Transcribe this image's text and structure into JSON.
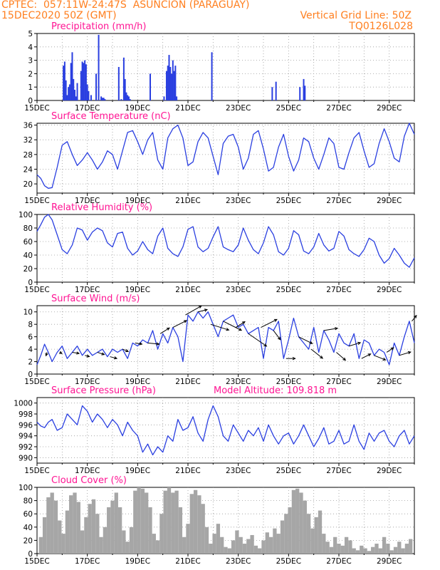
{
  "header": {
    "left1": "CPTEC:  057:11W-24:47S  ASUNCION (PARAGUAY)",
    "left2": "15DEC2020 50Z (GMT)",
    "right1": "Vertical Grid Line: 50Z",
    "right2": "TQ0126L028"
  },
  "colors": {
    "accent": "#ff7f1f",
    "title": "#ff1493",
    "line": "#2a3fe0",
    "bar": "#2a3fe0",
    "cloud": "#a6a6a6"
  },
  "x_tick_labels": [
    "15DEC",
    "17DEC",
    "19DEC",
    "21DEC",
    "23DEC",
    "25DEC",
    "27DEC",
    "29DEC"
  ],
  "chart_data": [
    {
      "type": "bar",
      "title": "Precipitation (mm/h)",
      "ylim": [
        0,
        5
      ],
      "yticks": [
        "0",
        "1",
        "2",
        "3",
        "4",
        "5"
      ],
      "x_range_days": [
        0,
        15
      ],
      "x": [
        1.05,
        1.1,
        1.15,
        1.2,
        1.25,
        1.3,
        1.35,
        1.4,
        1.45,
        1.5,
        1.55,
        1.6,
        1.75,
        1.8,
        1.85,
        1.9,
        1.95,
        2.0,
        2.05,
        2.15,
        2.35,
        2.45,
        2.55,
        2.6,
        2.65,
        2.7,
        3.25,
        3.35,
        3.45,
        3.5,
        3.55,
        3.6,
        3.65,
        3.7,
        4.5,
        5.05,
        5.15,
        5.2,
        5.25,
        5.3,
        5.35,
        5.4,
        5.45,
        5.5,
        5.55,
        6.95,
        9.35,
        9.5,
        10.45,
        10.6,
        10.65
      ],
      "values": [
        2.6,
        2.9,
        1.5,
        0.4,
        1.0,
        1.2,
        2.8,
        3.6,
        1.6,
        0.8,
        0.3,
        1.3,
        2.2,
        2.9,
        2.8,
        3.0,
        2.7,
        1.2,
        0.7,
        0.4,
        2.0,
        4.9,
        0.3,
        0.2,
        0.2,
        0.1,
        2.5,
        0.1,
        3.2,
        1.6,
        0.6,
        0.4,
        0.3,
        0.1,
        2.0,
        0.3,
        2.2,
        2.6,
        3.4,
        2.5,
        2.0,
        3.0,
        2.2,
        2.6,
        0.3,
        3.6,
        1.0,
        1.4,
        1.0,
        1.6,
        1.1
      ]
    },
    {
      "type": "line",
      "title": "Surface Temperature (nC)",
      "ylim": [
        17.5,
        36.5
      ],
      "yticks": [
        "20",
        "24",
        "28",
        "32",
        "36"
      ],
      "x_range_days": [
        0,
        15
      ],
      "x": [
        0,
        0.15,
        0.3,
        0.45,
        0.6,
        0.8,
        1.0,
        1.2,
        1.4,
        1.6,
        1.8,
        2.0,
        2.2,
        2.4,
        2.6,
        2.8,
        3.0,
        3.2,
        3.4,
        3.6,
        3.8,
        4.0,
        4.2,
        4.4,
        4.6,
        4.8,
        5.0,
        5.2,
        5.4,
        5.6,
        5.8,
        6.0,
        6.2,
        6.4,
        6.6,
        6.8,
        7.0,
        7.2,
        7.4,
        7.6,
        7.8,
        8.0,
        8.2,
        8.4,
        8.6,
        8.8,
        9.0,
        9.2,
        9.4,
        9.6,
        9.8,
        10.0,
        10.2,
        10.4,
        10.6,
        10.8,
        11.0,
        11.2,
        11.4,
        11.6,
        11.8,
        12.0,
        12.2,
        12.4,
        12.6,
        12.8,
        13.0,
        13.2,
        13.4,
        13.6,
        13.8,
        14.0,
        14.2,
        14.4,
        14.6,
        14.8,
        15.0
      ],
      "values": [
        22.5,
        21.5,
        19.5,
        18.8,
        19.0,
        24.5,
        30.5,
        31.5,
        28.0,
        25.0,
        26.5,
        28.5,
        26.5,
        24.0,
        26.0,
        29.0,
        28.0,
        24.0,
        29.0,
        34.0,
        34.5,
        31.5,
        28.0,
        32.0,
        34.0,
        26.5,
        24.0,
        32.5,
        35.0,
        36.0,
        32.5,
        25.0,
        26.0,
        31.5,
        34.0,
        32.5,
        27.5,
        22.5,
        31.0,
        33.0,
        33.5,
        30.0,
        24.0,
        27.0,
        33.5,
        34.5,
        29.5,
        23.5,
        24.5,
        30.0,
        33.5,
        27.5,
        23.5,
        26.5,
        32.5,
        31.5,
        27.0,
        24.0,
        28.0,
        32.5,
        31.0,
        24.5,
        24.0,
        28.5,
        32.5,
        34.0,
        29.0,
        24.5,
        25.5,
        31.0,
        35.0,
        31.5,
        27.0,
        26.0,
        33.0,
        36.5,
        33.5
      ]
    },
    {
      "type": "line",
      "title": "Relative Humidity (%)",
      "ylim": [
        0,
        100
      ],
      "yticks": [
        "0",
        "20",
        "40",
        "60",
        "80",
        "100"
      ],
      "x_range_days": [
        0,
        15
      ],
      "x": [
        0,
        0.15,
        0.3,
        0.45,
        0.6,
        0.8,
        1.0,
        1.2,
        1.4,
        1.6,
        1.8,
        2.0,
        2.2,
        2.4,
        2.6,
        2.8,
        3.0,
        3.2,
        3.4,
        3.6,
        3.8,
        4.0,
        4.2,
        4.4,
        4.6,
        4.8,
        5.0,
        5.2,
        5.4,
        5.6,
        5.8,
        6.0,
        6.2,
        6.4,
        6.6,
        6.8,
        7.0,
        7.2,
        7.4,
        7.6,
        7.8,
        8.0,
        8.2,
        8.4,
        8.6,
        8.8,
        9.0,
        9.2,
        9.4,
        9.6,
        9.8,
        10.0,
        10.2,
        10.4,
        10.6,
        10.8,
        11.0,
        11.2,
        11.4,
        11.6,
        11.8,
        12.0,
        12.2,
        12.4,
        12.6,
        12.8,
        13.0,
        13.2,
        13.4,
        13.6,
        13.8,
        14.0,
        14.2,
        14.4,
        14.6,
        14.8,
        15.0
      ],
      "values": [
        75.0,
        85.0,
        96.0,
        100.0,
        92.0,
        70.0,
        48.0,
        42.0,
        55.0,
        80.0,
        77.0,
        62.0,
        74.0,
        80.0,
        76.0,
        58.0,
        52.0,
        72.0,
        74.0,
        50.0,
        40.0,
        46.0,
        60.0,
        48.0,
        42.0,
        68.0,
        80.0,
        50.0,
        42.0,
        38.0,
        52.0,
        78.0,
        82.0,
        52.0,
        45.0,
        50.0,
        67.0,
        82.0,
        52.0,
        48.0,
        45.0,
        55.0,
        80.0,
        62.0,
        48.0,
        42.0,
        58.0,
        82.0,
        70.0,
        45.0,
        40.0,
        50.0,
        76.0,
        70.0,
        46.0,
        42.0,
        52.0,
        72.0,
        55.0,
        46.0,
        50.0,
        75.0,
        68.0,
        48.0,
        42.0,
        38.0,
        48.0,
        65.0,
        60.0,
        40.0,
        28.0,
        35.0,
        50.0,
        40.0,
        28.0,
        22.0,
        36.0
      ]
    },
    {
      "type": "line",
      "title": "Surface Wind (m/s)",
      "ylim": [
        0,
        11
      ],
      "yticks": [
        "0",
        "2",
        "4",
        "6",
        "8",
        "10"
      ],
      "x_range_days": [
        0,
        15
      ],
      "x": [
        0,
        0.15,
        0.3,
        0.45,
        0.6,
        0.8,
        1.0,
        1.2,
        1.4,
        1.6,
        1.8,
        2.0,
        2.2,
        2.4,
        2.6,
        2.8,
        3.0,
        3.2,
        3.4,
        3.6,
        3.8,
        4.0,
        4.2,
        4.4,
        4.6,
        4.8,
        5.0,
        5.2,
        5.4,
        5.6,
        5.8,
        6.0,
        6.2,
        6.4,
        6.6,
        6.8,
        7.0,
        7.2,
        7.4,
        7.6,
        7.8,
        8.0,
        8.2,
        8.4,
        8.6,
        8.8,
        9.0,
        9.2,
        9.4,
        9.6,
        9.8,
        10.0,
        10.2,
        10.4,
        10.6,
        10.8,
        11.0,
        11.2,
        11.4,
        11.6,
        11.8,
        12.0,
        12.2,
        12.4,
        12.6,
        12.8,
        13.0,
        13.2,
        13.4,
        13.6,
        13.8,
        14.0,
        14.2,
        14.4,
        14.6,
        14.8,
        15.0
      ],
      "values": [
        1.5,
        3.0,
        4.8,
        3.5,
        2.0,
        3.5,
        4.5,
        2.5,
        3.5,
        4.5,
        3.0,
        4.0,
        3.0,
        3.5,
        4.0,
        2.8,
        4.0,
        3.5,
        4.0,
        2.5,
        5.0,
        4.5,
        5.5,
        5.0,
        7.0,
        4.0,
        6.5,
        5.0,
        7.5,
        6.0,
        2.0,
        9.5,
        8.5,
        10.0,
        9.0,
        10.0,
        8.0,
        6.0,
        8.5,
        9.0,
        9.5,
        7.5,
        8.0,
        6.5,
        7.0,
        7.5,
        2.5,
        7.5,
        7.0,
        8.5,
        2.5,
        5.5,
        9.0,
        6.0,
        5.0,
        4.0,
        7.5,
        3.5,
        7.0,
        5.5,
        3.5,
        6.5,
        5.0,
        4.5,
        6.5,
        2.5,
        5.5,
        5.0,
        3.0,
        4.0,
        3.5,
        1.5,
        5.0,
        3.0,
        6.0,
        8.5,
        5.0
      ],
      "vector_x": [
        0.4,
        0.9,
        1.4,
        1.9,
        2.4,
        2.9,
        3.4,
        3.9,
        4.4,
        4.9,
        5.4,
        5.9,
        6.4,
        6.9,
        7.4,
        7.9,
        8.4,
        8.9,
        9.4,
        9.9,
        10.4,
        10.9,
        11.4,
        11.9,
        12.4,
        12.9,
        13.4,
        13.9,
        14.4,
        14.9
      ],
      "vector_u": [
        -0.5,
        1.0,
        3.0,
        2.0,
        3.0,
        3.0,
        2.5,
        3.0,
        5.0,
        4.0,
        6.0,
        7.0,
        4.0,
        8.0,
        8.0,
        4.0,
        8.0,
        7.0,
        3.0,
        4.0,
        6.0,
        5.0,
        6.0,
        4.0,
        5.0,
        4.0,
        5.0,
        3.0,
        5.0,
        2.0
      ],
      "vector_v": [
        -1.5,
        -0.5,
        -0.5,
        -0.5,
        -1.0,
        -0.8,
        -1.0,
        -0.5,
        -0.5,
        2.5,
        3.0,
        4.0,
        1.0,
        -2.5,
        -4.0,
        2.5,
        -5.5,
        3.5,
        -4.0,
        0.0,
        -3.0,
        -4.0,
        1.0,
        -3.5,
        1.5,
        2.0,
        -2.0,
        2.0,
        1.5,
        2.5
      ]
    },
    {
      "type": "line",
      "title": "Surface Pressure (hPa)",
      "annotation": "Model Altitude: 109.818 m",
      "ylim": [
        989,
        1001
      ],
      "yticks": [
        "990",
        "992",
        "994",
        "996",
        "998",
        "1000"
      ],
      "x_range_days": [
        0,
        15
      ],
      "x": [
        0,
        0.15,
        0.3,
        0.45,
        0.6,
        0.8,
        1.0,
        1.2,
        1.4,
        1.6,
        1.8,
        2.0,
        2.2,
        2.4,
        2.6,
        2.8,
        3.0,
        3.2,
        3.4,
        3.6,
        3.8,
        4.0,
        4.2,
        4.4,
        4.6,
        4.8,
        5.0,
        5.2,
        5.4,
        5.6,
        5.8,
        6.0,
        6.2,
        6.4,
        6.6,
        6.8,
        7.0,
        7.2,
        7.4,
        7.6,
        7.8,
        8.0,
        8.2,
        8.4,
        8.6,
        8.8,
        9.0,
        9.2,
        9.4,
        9.6,
        9.8,
        10.0,
        10.2,
        10.4,
        10.6,
        10.8,
        11.0,
        11.2,
        11.4,
        11.6,
        11.8,
        12.0,
        12.2,
        12.4,
        12.6,
        12.8,
        13.0,
        13.2,
        13.4,
        13.6,
        13.8,
        14.0,
        14.2,
        14.4,
        14.6,
        14.8,
        15.0
      ],
      "values": [
        996.5,
        995.8,
        995.5,
        996.5,
        997.0,
        995.0,
        995.5,
        998.0,
        997.0,
        996.0,
        999.5,
        998.5,
        996.5,
        998.0,
        997.0,
        995.5,
        997.0,
        996.0,
        994.0,
        996.5,
        995.0,
        994.0,
        991.0,
        992.5,
        990.5,
        992.0,
        991.0,
        994.0,
        993.0,
        997.0,
        995.0,
        995.5,
        997.5,
        994.5,
        993.0,
        997.0,
        999.5,
        997.5,
        994.0,
        993.0,
        996.0,
        994.5,
        993.0,
        995.0,
        994.0,
        995.5,
        993.0,
        996.0,
        994.0,
        992.5,
        994.0,
        994.5,
        992.5,
        994.0,
        996.0,
        994.0,
        992.0,
        993.5,
        995.5,
        992.5,
        993.0,
        995.0,
        992.5,
        993.0,
        996.0,
        993.0,
        991.5,
        994.5,
        993.0,
        994.5,
        995.0,
        993.0,
        992.0,
        994.0,
        995.0,
        992.5,
        994.0
      ]
    },
    {
      "type": "bar",
      "title": "Cloud Cover (%)",
      "ylim": [
        0,
        100
      ],
      "yticks": [
        "0",
        "20",
        "40",
        "60",
        "80",
        "100"
      ],
      "x_range_days": [
        0,
        15
      ],
      "x": [
        0.15,
        0.3,
        0.45,
        0.6,
        0.75,
        0.9,
        1.05,
        1.2,
        1.35,
        1.5,
        1.65,
        1.8,
        1.95,
        2.1,
        2.25,
        2.4,
        2.55,
        2.7,
        2.85,
        3.0,
        3.15,
        3.3,
        3.45,
        3.6,
        3.75,
        3.9,
        4.05,
        4.2,
        4.35,
        4.5,
        4.65,
        4.8,
        4.95,
        5.1,
        5.25,
        5.4,
        5.55,
        5.7,
        5.85,
        6.0,
        6.15,
        6.3,
        6.45,
        6.6,
        6.75,
        6.9,
        7.05,
        7.2,
        7.35,
        7.5,
        7.65,
        7.8,
        7.95,
        8.1,
        8.25,
        8.4,
        8.55,
        8.7,
        8.85,
        9.0,
        9.15,
        9.3,
        9.45,
        9.6,
        9.75,
        9.9,
        10.05,
        10.2,
        10.35,
        10.5,
        10.65,
        10.8,
        10.95,
        11.1,
        11.25,
        11.4,
        11.55,
        11.7,
        11.85,
        12.0,
        12.15,
        12.3,
        12.45,
        12.6,
        12.75,
        12.9,
        13.05,
        13.2,
        13.35,
        13.5,
        13.65,
        13.8,
        13.95,
        14.1,
        14.25,
        14.4,
        14.55,
        14.7,
        14.85
      ],
      "values": [
        25,
        55,
        85,
        92,
        80,
        50,
        30,
        65,
        88,
        92,
        78,
        35,
        55,
        75,
        82,
        60,
        25,
        40,
        70,
        80,
        92,
        70,
        35,
        18,
        40,
        95,
        100,
        98,
        92,
        70,
        30,
        20,
        60,
        95,
        100,
        92,
        95,
        70,
        25,
        45,
        90,
        96,
        88,
        75,
        40,
        15,
        30,
        45,
        25,
        10,
        8,
        20,
        35,
        25,
        15,
        22,
        28,
        12,
        8,
        20,
        32,
        25,
        38,
        30,
        50,
        60,
        70,
        96,
        98,
        92,
        80,
        60,
        38,
        55,
        65,
        30,
        18,
        10,
        25,
        15,
        12,
        25,
        20,
        8,
        5,
        12,
        8,
        4,
        10,
        15,
        8,
        25,
        15,
        5,
        10,
        18,
        8,
        15,
        22
      ]
    }
  ]
}
